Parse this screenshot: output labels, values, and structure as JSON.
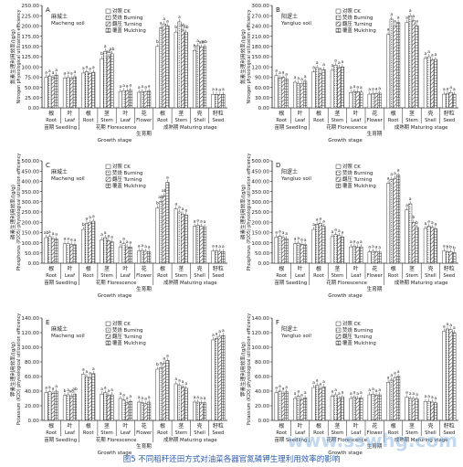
{
  "caption": "图5 不同稻秆还田方式对油菜各器官氮磷钾生理利用效率的影响",
  "watermark": "www.sswhg.com",
  "legend_labels": [
    "对照 CK",
    "焚烧 Burning",
    "翻压 Turning",
    "覆盖 Mulching"
  ],
  "colors": {
    "axis": "#222222",
    "bar_fill": "#ffffff",
    "bar_stroke": "#333333"
  },
  "group_labels": {
    "seedling": [
      "苗期 Seedling"
    ],
    "florescence": [
      "花期 Florescence"
    ],
    "maturing": [
      "成熟期 Maturing stage"
    ]
  },
  "chart_data": [
    {
      "panel": "A",
      "type": "bar",
      "site_cn": "麻城土",
      "site_en": "Macheng soil",
      "ylabel_cn": "氮素生理利用效率/(g/g)",
      "ylabel_en": "Nitrogen physiological utilization efficiency",
      "xlabel_cn": "生育期",
      "xlabel_en": "Growth stage",
      "ylim": [
        0,
        250
      ],
      "yticks": [
        "0.00",
        "25.00",
        "50.00",
        "75.00",
        "100.00",
        "125.00",
        "150.00",
        "175.00",
        "200.00",
        "225.00",
        "250.00"
      ],
      "categories": [
        {
          "cn": "根",
          "en": "Root"
        },
        {
          "cn": "叶",
          "en": "Leaf"
        },
        {
          "cn": "根",
          "en": "Root"
        },
        {
          "cn": "茎",
          "en": "Stem"
        },
        {
          "cn": "叶",
          "en": "Leaf"
        },
        {
          "cn": "花",
          "en": "Flower"
        },
        {
          "cn": "根",
          "en": "Root"
        },
        {
          "cn": "茎",
          "en": "Stem"
        },
        {
          "cn": "壳",
          "en": "Shell"
        },
        {
          "cn": "籽粒",
          "en": "Seed"
        }
      ],
      "series": [
        {
          "name": "对照 CK",
          "values": [
            75,
            73,
            85,
            120,
            40,
            38,
            150,
            185,
            140,
            33
          ]
        },
        {
          "name": "焚烧 Burning",
          "values": [
            78,
            74,
            88,
            138,
            42,
            40,
            195,
            210,
            152,
            33
          ]
        },
        {
          "name": "翻压 Turning",
          "values": [
            74,
            72,
            84,
            125,
            41,
            39,
            205,
            190,
            148,
            32
          ]
        },
        {
          "name": "覆盖 Mulching",
          "values": [
            80,
            76,
            87,
            132,
            43,
            41,
            200,
            185,
            150,
            33
          ]
        }
      ],
      "letters": [
        [
          "a",
          "a",
          "a",
          "a"
        ],
        [
          "a",
          "a",
          "a",
          "a"
        ],
        [
          "a",
          "a",
          "a",
          "a"
        ],
        [
          "b",
          "a",
          "ab",
          "ab"
        ],
        [
          "a",
          "a",
          "a",
          "a"
        ],
        [
          "a",
          "a",
          "a",
          "a"
        ],
        [
          "b",
          "a",
          "a",
          "a"
        ],
        [
          "b",
          "a",
          "ab",
          "ab"
        ],
        [
          "b",
          "a",
          "ab",
          "ab"
        ],
        [
          "a",
          "a",
          "a",
          "a"
        ]
      ]
    },
    {
      "panel": "B",
      "type": "bar",
      "site_cn": "阳逻土",
      "site_en": "Yangluo soil",
      "ylabel_cn": "氮素生理利用效率/(g/g)",
      "ylabel_en": "Nitrogen physiological utilization efficiency",
      "xlabel_cn": "生育期",
      "xlabel_en": "Growth stage",
      "ylim": [
        0,
        300
      ],
      "yticks": [
        "0.00",
        "30.00",
        "60.00",
        "90.00",
        "120.00",
        "150.00",
        "180.00",
        "210.00",
        "240.00",
        "270.00",
        "300.00"
      ],
      "categories": [
        {
          "cn": "根",
          "en": "Root"
        },
        {
          "cn": "叶",
          "en": "Leaf"
        },
        {
          "cn": "根",
          "en": "Root"
        },
        {
          "cn": "茎",
          "en": "Stem"
        },
        {
          "cn": "叶",
          "en": "Leaf"
        },
        {
          "cn": "花",
          "en": "Flower"
        },
        {
          "cn": "根",
          "en": "Root"
        },
        {
          "cn": "茎",
          "en": "Stem"
        },
        {
          "cn": "壳",
          "en": "Shell"
        },
        {
          "cn": "籽粒",
          "en": "Seed"
        }
      ],
      "series": [
        {
          "name": "对照 CK",
          "values": [
            95,
            75,
            105,
            110,
            45,
            40,
            215,
            250,
            145,
            40
          ]
        },
        {
          "name": "焚烧 Burning",
          "values": [
            88,
            72,
            118,
            125,
            48,
            42,
            260,
            270,
            150,
            42
          ]
        },
        {
          "name": "翻压 Turning",
          "values": [
            90,
            70,
            100,
            118,
            47,
            41,
            240,
            255,
            140,
            45
          ]
        },
        {
          "name": "覆盖 Mulching",
          "values": [
            85,
            78,
            112,
            120,
            46,
            43,
            250,
            240,
            142,
            40
          ]
        }
      ],
      "letters": [
        [
          "a",
          "a",
          "a",
          "a"
        ],
        [
          "a",
          "a",
          "a",
          "a"
        ],
        [
          "a",
          "a",
          "a",
          "a"
        ],
        [
          "a",
          "a",
          "a",
          "a"
        ],
        [
          "a",
          "a",
          "a",
          "a"
        ],
        [
          "a",
          "a",
          "a",
          "a"
        ],
        [
          "a",
          "a",
          "a",
          "a"
        ],
        [
          "a",
          "a",
          "a",
          "a"
        ],
        [
          "a",
          "a",
          "a",
          "a"
        ],
        [
          "a",
          "a",
          "a",
          "a"
        ]
      ]
    },
    {
      "panel": "C",
      "type": "bar",
      "site_cn": "麻城土",
      "site_en": "Macheng soil",
      "ylabel_cn": "磷素生理利用效率/(g/g)",
      "ylabel_en": "Phosphorus (P2O5) physiological utilization efficiency",
      "xlabel_cn": "生育期",
      "xlabel_en": "Growth stage",
      "ylim": [
        0,
        500
      ],
      "yticks": [
        "0.00",
        "50.00",
        "100.00",
        "150.00",
        "200.00",
        "250.00",
        "300.00",
        "350.00",
        "400.00",
        "450.00",
        "500.00"
      ],
      "categories": [
        {
          "cn": "根",
          "en": "Root"
        },
        {
          "cn": "叶",
          "en": "Leaf"
        },
        {
          "cn": "根",
          "en": "Root"
        },
        {
          "cn": "茎",
          "en": "Stem"
        },
        {
          "cn": "叶",
          "en": "Leaf"
        },
        {
          "cn": "花",
          "en": "Flower"
        },
        {
          "cn": "根",
          "en": "Root"
        },
        {
          "cn": "茎",
          "en": "Stem"
        },
        {
          "cn": "壳",
          "en": "Shell"
        },
        {
          "cn": "籽粒",
          "en": "Seed"
        }
      ],
      "series": [
        {
          "name": "对照 CK",
          "values": [
            125,
            95,
            165,
            115,
            80,
            60,
            270,
            265,
            180,
            60
          ]
        },
        {
          "name": "焚烧 Burning",
          "values": [
            130,
            95,
            195,
            125,
            95,
            62,
            300,
            250,
            185,
            60
          ]
        },
        {
          "name": "翻压 Turning",
          "values": [
            120,
            92,
            200,
            110,
            80,
            58,
            330,
            240,
            180,
            58
          ]
        },
        {
          "name": "覆盖 Mulching",
          "values": [
            118,
            90,
            205,
            105,
            78,
            56,
            395,
            235,
            178,
            57
          ]
        }
      ],
      "letters": [
        [
          "ab",
          "a",
          "a",
          "a"
        ],
        [
          "a",
          "a",
          "a",
          "a"
        ],
        [
          "b",
          "a",
          "a",
          "a"
        ],
        [
          "a",
          "a",
          "a",
          "a"
        ],
        [
          "a",
          "a",
          "a",
          "a"
        ],
        [
          "a",
          "a",
          "a",
          "a"
        ],
        [
          "b",
          "ab",
          "ab",
          "a"
        ],
        [
          "a",
          "a",
          "a",
          "a"
        ],
        [
          "a",
          "a",
          "a",
          "a"
        ],
        [
          "a",
          "a",
          "a",
          "a"
        ]
      ]
    },
    {
      "panel": "D",
      "type": "bar",
      "site_cn": "阳逻土",
      "site_en": "Yangluo soil",
      "ylabel_cn": "磷素生理利用效率/(g/g)",
      "ylabel_en": "Phosphorus (P2O5) physiological utilization efficiency",
      "xlabel_cn": "生育期",
      "xlabel_en": "Growth stage",
      "ylim": [
        0,
        500
      ],
      "yticks": [
        "0.00",
        "50.00",
        "100.00",
        "150.00",
        "200.00",
        "250.00",
        "300.00",
        "350.00",
        "400.00",
        "450.00",
        "500.00"
      ],
      "categories": [
        {
          "cn": "根",
          "en": "Root"
        },
        {
          "cn": "叶",
          "en": "Leaf"
        },
        {
          "cn": "根",
          "en": "Root"
        },
        {
          "cn": "茎",
          "en": "Stem"
        },
        {
          "cn": "叶",
          "en": "Leaf"
        },
        {
          "cn": "花",
          "en": "Flower"
        },
        {
          "cn": "根",
          "en": "Root"
        },
        {
          "cn": "茎",
          "en": "Stem"
        },
        {
          "cn": "壳",
          "en": "Shell"
        },
        {
          "cn": "籽粒",
          "en": "Seed"
        }
      ],
      "series": [
        {
          "name": "对照 CK",
          "values": [
            128,
            95,
            165,
            130,
            80,
            55,
            390,
            260,
            170,
            60
          ]
        },
        {
          "name": "焚烧 Burning",
          "values": [
            132,
            98,
            190,
            140,
            82,
            58,
            410,
            290,
            180,
            55
          ]
        },
        {
          "name": "翻压 Turning",
          "values": [
            125,
            92,
            195,
            135,
            78,
            56,
            415,
            200,
            175,
            55
          ]
        },
        {
          "name": "覆盖 Mulching",
          "values": [
            120,
            90,
            180,
            128,
            80,
            54,
            430,
            175,
            168,
            52
          ]
        }
      ],
      "letters": [
        [
          "a",
          "a",
          "a",
          "a"
        ],
        [
          "a",
          "a",
          "a",
          "a"
        ],
        [
          "a",
          "a",
          "a",
          "a"
        ],
        [
          "a",
          "a",
          "a",
          "a"
        ],
        [
          "a",
          "a",
          "a",
          "a"
        ],
        [
          "a",
          "a",
          "a",
          "a"
        ],
        [
          "a",
          "a",
          "a",
          "a"
        ],
        [
          "a",
          "a",
          "b",
          "b"
        ],
        [
          "a",
          "a",
          "a",
          "a"
        ],
        [
          "a",
          "b",
          "b",
          "b"
        ]
      ]
    },
    {
      "panel": "E",
      "type": "bar",
      "site_cn": "麻城土",
      "site_en": "Macheng soil",
      "ylabel_cn": "钾素生理利用效率/(g/g)",
      "ylabel_en": "Potassium (K2O) physiological utilization efficiency",
      "xlabel_cn": "生育期",
      "xlabel_en": "Growth stage",
      "ylim": [
        0,
        140
      ],
      "yticks": [
        "0.00",
        "20.00",
        "40.00",
        "60.00",
        "80.00",
        "100.00",
        "120.00",
        "140.00"
      ],
      "categories": [
        {
          "cn": "根",
          "en": "Root"
        },
        {
          "cn": "叶",
          "en": "Leaf"
        },
        {
          "cn": "根",
          "en": "Root"
        },
        {
          "cn": "茎",
          "en": "Stem"
        },
        {
          "cn": "叶",
          "en": "Leaf"
        },
        {
          "cn": "花",
          "en": "Flower"
        },
        {
          "cn": "根",
          "en": "Root"
        },
        {
          "cn": "茎",
          "en": "Stem"
        },
        {
          "cn": "壳",
          "en": "Shell"
        },
        {
          "cn": "籽粒",
          "en": "Seed"
        }
      ],
      "series": [
        {
          "name": "对照 CK",
          "values": [
            38,
            34,
            63,
            36,
            30,
            25,
            70,
            50,
            25,
            110
          ]
        },
        {
          "name": "焚烧 Burning",
          "values": [
            39,
            35,
            60,
            38,
            28,
            24,
            72,
            48,
            25,
            112
          ]
        },
        {
          "name": "翻压 Turning",
          "values": [
            37,
            33,
            58,
            34,
            24,
            23,
            78,
            46,
            24,
            115
          ]
        },
        {
          "name": "覆盖 Mulching",
          "values": [
            40,
            36,
            64,
            35,
            26,
            25,
            82,
            44,
            24,
            116
          ]
        }
      ],
      "letters": [
        [
          "a",
          "a",
          "a",
          "a"
        ],
        [
          "b",
          "a",
          "ab",
          "ab"
        ],
        [
          "a",
          "a",
          "a",
          "a"
        ],
        [
          "a",
          "a",
          "a",
          "a"
        ],
        [
          "a",
          "a",
          "a",
          "a"
        ],
        [
          "a",
          "a",
          "a",
          "a"
        ],
        [
          "b",
          "a",
          "a",
          "a"
        ],
        [
          "a",
          "a",
          "a",
          "a"
        ],
        [
          "a",
          "a",
          "a",
          "a"
        ],
        [
          "a",
          "a",
          "a",
          "a"
        ]
      ]
    },
    {
      "panel": "F",
      "type": "bar",
      "site_cn": "阳逻土",
      "site_en": "Yangluo soil",
      "ylabel_cn": "钾素生理利用效率/(g/g)",
      "ylabel_en": "Potassium (K2O) physiological utilization efficiency",
      "xlabel_cn": "生育期",
      "xlabel_en": "Growth stage",
      "ylim": [
        0,
        140
      ],
      "yticks": [
        "0.00",
        "20.00",
        "40.00",
        "60.00",
        "80.00",
        "100.00",
        "120.00",
        "140.00"
      ],
      "categories": [
        {
          "cn": "根",
          "en": "Root"
        },
        {
          "cn": "叶",
          "en": "Leaf"
        },
        {
          "cn": "根",
          "en": "Root"
        },
        {
          "cn": "茎",
          "en": "Stem"
        },
        {
          "cn": "叶",
          "en": "Leaf"
        },
        {
          "cn": "花",
          "en": "Flower"
        },
        {
          "cn": "根",
          "en": "Root"
        },
        {
          "cn": "茎",
          "en": "Stem"
        },
        {
          "cn": "壳",
          "en": "Shell"
        },
        {
          "cn": "籽粒",
          "en": "Seed"
        }
      ],
      "series": [
        {
          "name": "对照 CK",
          "values": [
            38,
            30,
            45,
            33,
            30,
            35,
            52,
            32,
            26,
            122
          ]
        },
        {
          "name": "焚烧 Burning",
          "values": [
            40,
            33,
            48,
            35,
            32,
            36,
            55,
            30,
            26,
            125
          ]
        },
        {
          "name": "翻压 Turning",
          "values": [
            37,
            28,
            43,
            30,
            30,
            34,
            58,
            30,
            25,
            124
          ]
        },
        {
          "name": "覆盖 Mulching",
          "values": [
            39,
            31,
            46,
            32,
            31,
            35,
            60,
            29,
            24,
            120
          ]
        }
      ],
      "letters": [
        [
          "a",
          "a",
          "a",
          "a"
        ],
        [
          "a",
          "a",
          "a",
          "a"
        ],
        [
          "a",
          "a",
          "a",
          "a"
        ],
        [
          "a",
          "a",
          "a",
          "a"
        ],
        [
          "a",
          "a",
          "a",
          "a"
        ],
        [
          "a",
          "a",
          "a",
          "a"
        ],
        [
          "a",
          "a",
          "a",
          "a"
        ],
        [
          "a",
          "a",
          "a",
          "a"
        ],
        [
          "a",
          "a",
          "a",
          "a"
        ],
        [
          "a",
          "a",
          "a",
          "a"
        ]
      ]
    }
  ]
}
